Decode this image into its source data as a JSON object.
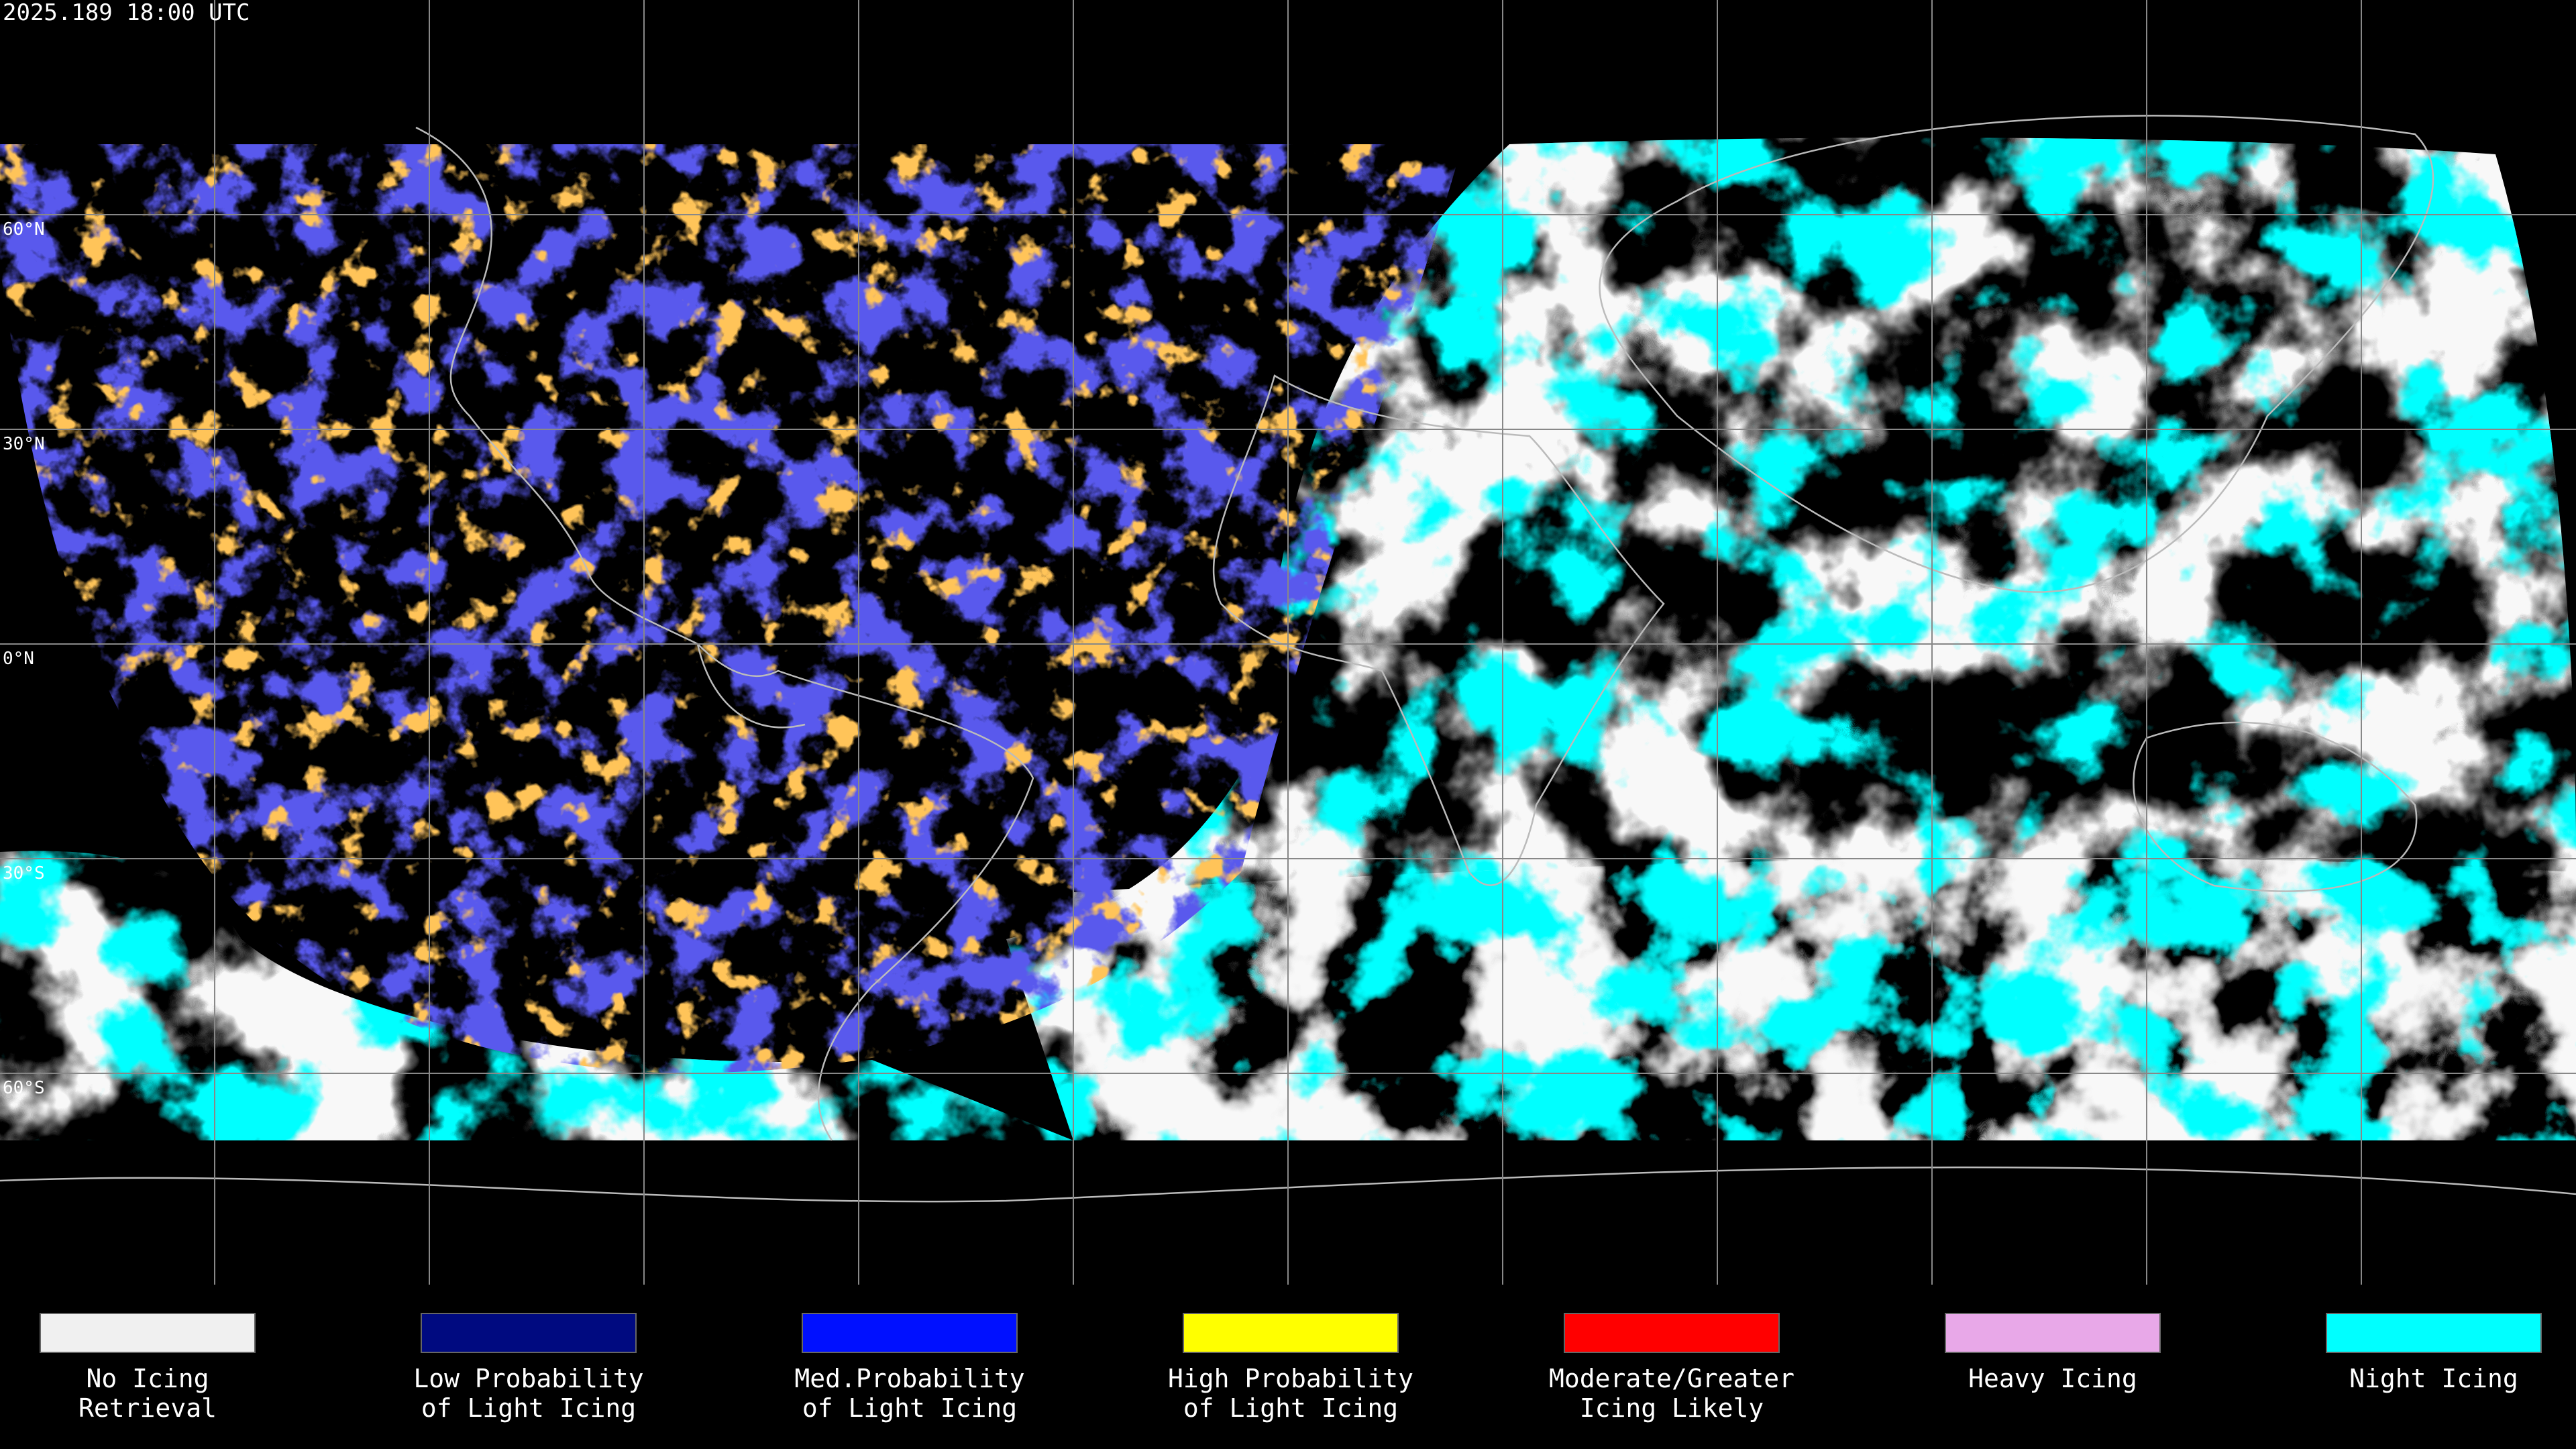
{
  "header": {
    "timestamp": "2025.189 18:00 UTC"
  },
  "latitude_labels": [
    "60°N",
    "30°N",
    "0°N",
    "30°S",
    "60°S"
  ],
  "legend": [
    {
      "label": [
        "No Icing",
        "Retrieval"
      ],
      "color": "#f0f0f0"
    },
    {
      "label": [
        "Low Probability",
        "of Light Icing"
      ],
      "color": "#000a80"
    },
    {
      "label": [
        "Med.Probability",
        "of Light Icing"
      ],
      "color": "#0010ff"
    },
    {
      "label": [
        "High Probability",
        "of Light Icing"
      ],
      "color": "#ffff00"
    },
    {
      "label": [
        "Moderate/Greater",
        "Icing Likely"
      ],
      "color": "#ff0000"
    },
    {
      "label": [
        "Heavy Icing"
      ],
      "color": "#e8a8e8"
    },
    {
      "label": [
        "Night Icing"
      ],
      "color": "#00ffff"
    }
  ]
}
